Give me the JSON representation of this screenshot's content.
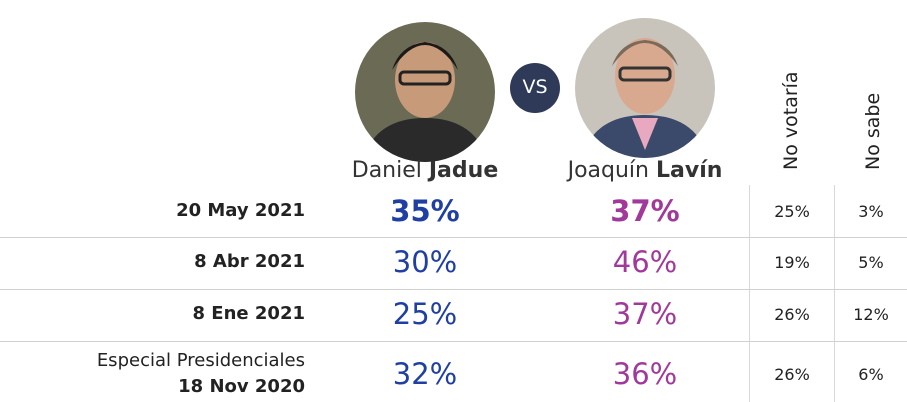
{
  "header": {
    "candidates": [
      {
        "first": "Daniel",
        "last": "Jadue"
      },
      {
        "first": "Joaquín",
        "last": "Lavín"
      }
    ],
    "versus": "VS",
    "columns": [
      "No votaría",
      "No sabe"
    ]
  },
  "table": {
    "rows": [
      {
        "label": [
          "20 May 2021"
        ],
        "values": [
          "35%",
          "37%",
          "25%",
          "3%"
        ]
      },
      {
        "label": [
          "8 Abr 2021"
        ],
        "values": [
          "30%",
          "46%",
          "19%",
          "5%"
        ]
      },
      {
        "label": [
          "8 Ene 2021"
        ],
        "values": [
          "25%",
          "37%",
          "26%",
          "12%"
        ]
      },
      {
        "label": [
          "Especial Presidenciales",
          "18 Nov 2020"
        ],
        "values": [
          "32%",
          "36%",
          "26%",
          "6%"
        ]
      }
    ]
  }
}
